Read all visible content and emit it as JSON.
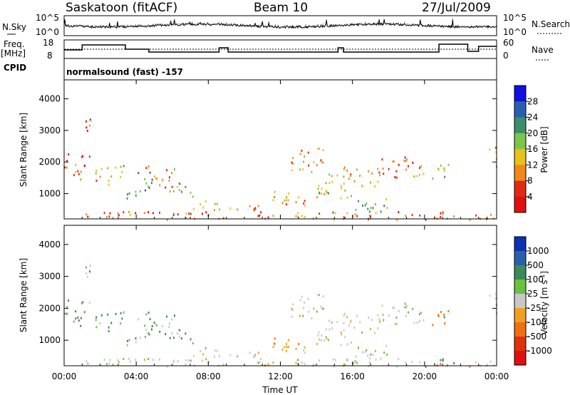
{
  "header": {
    "station": "Saskatoon (fitACF)",
    "beam": "Beam 10",
    "date": "27/Jul/2009"
  },
  "noise_panel": {
    "left_label": "N.Sky",
    "right_label": "N.Search",
    "left_ticks": [
      "10^5",
      "10^0"
    ],
    "right_ticks": [
      "10^5",
      "10^0"
    ]
  },
  "freq_panel": {
    "left_label_1": "Freq.",
    "left_label_2": "[MHz]",
    "right_label": "Nave",
    "left_ticks": [
      "18",
      "8"
    ],
    "right_ticks": [
      "60",
      "0"
    ]
  },
  "cpid_panel": {
    "label": "CPID",
    "text": "normalsound (fast) -157"
  },
  "chart_data": [
    {
      "type": "heatmap",
      "name": "power",
      "ylabel": "Slant Range [km]",
      "yticks": [
        1000,
        2000,
        3000,
        4000
      ],
      "ylim": [
        200,
        4600
      ],
      "xlim": [
        0,
        24
      ],
      "colorbar_label": "Power [dB]",
      "colorbar_ticks": [
        "28",
        "24",
        "20",
        "16",
        "12",
        "8",
        "4"
      ],
      "colorbar_colors": [
        "#1010e0",
        "#2a5fb0",
        "#3a8f6a",
        "#7cc44a",
        "#e6c21a",
        "#f08a1c",
        "#e02a14",
        "#e01010"
      ]
    },
    {
      "type": "heatmap",
      "name": "velocity",
      "ylabel": "Slant Range [km]",
      "yticks": [
        1000,
        2000,
        3000,
        4000
      ],
      "ylim": [
        200,
        4600
      ],
      "xlim": [
        0,
        24
      ],
      "xlabel": "Time UT",
      "xticks": [
        "00:00",
        "04:00",
        "08:00",
        "12:00",
        "16:00",
        "20:00",
        "00:00"
      ],
      "colorbar_label": "Velocity [m s",
      "colorbar_sup": "-1",
      "colorbar_label_end": "]",
      "colorbar_ticks": [
        "1000",
        "500",
        "100",
        "25",
        "-25",
        "-100",
        "-500",
        "-1000"
      ],
      "colorbar_colors": [
        "#1030b0",
        "#2a60a8",
        "#3a8a5a",
        "#6cc040",
        "#c8c8c8",
        "#f0a020",
        "#f07010",
        "#e03010",
        "#e01010"
      ]
    }
  ]
}
